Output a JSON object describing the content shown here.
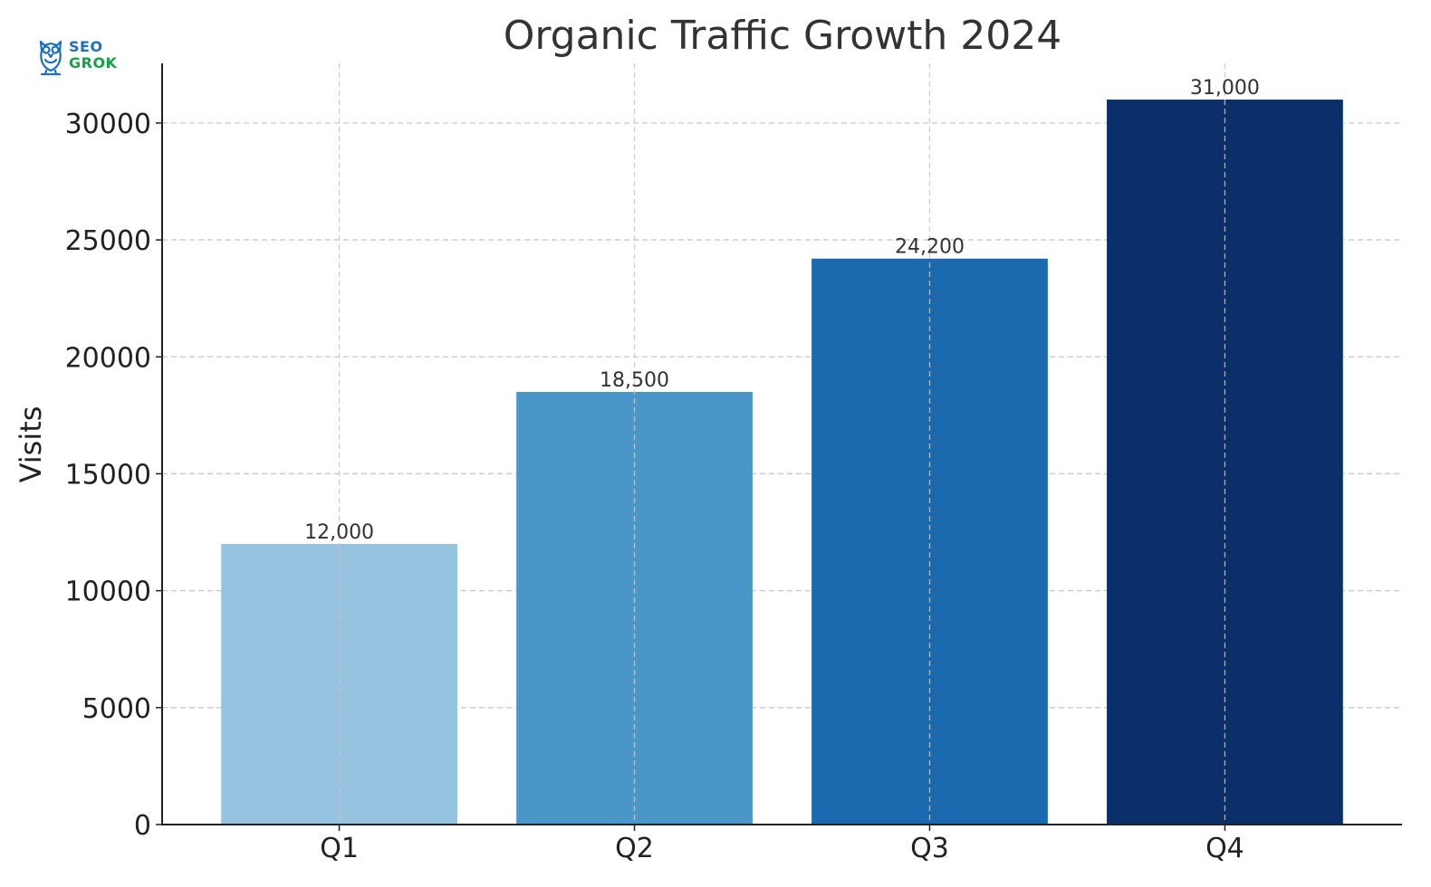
{
  "logo": {
    "line1": "SEO",
    "line2": "GROK"
  },
  "chart_data": {
    "type": "bar",
    "title": "Organic Traffic Growth 2024",
    "xlabel": "",
    "ylabel": "Visits",
    "categories": [
      "Q1",
      "Q2",
      "Q3",
      "Q4"
    ],
    "values": [
      12000,
      18500,
      24200,
      31000
    ],
    "value_labels": [
      "12,000",
      "18,500",
      "24,200",
      "31,000"
    ],
    "colors": [
      "#95c3e0",
      "#4a96c8",
      "#1b69ae",
      "#0a2f69"
    ],
    "yticks": [
      0,
      5000,
      10000,
      15000,
      20000,
      25000,
      30000
    ],
    "ylim": [
      0,
      32550
    ],
    "grid": true
  }
}
